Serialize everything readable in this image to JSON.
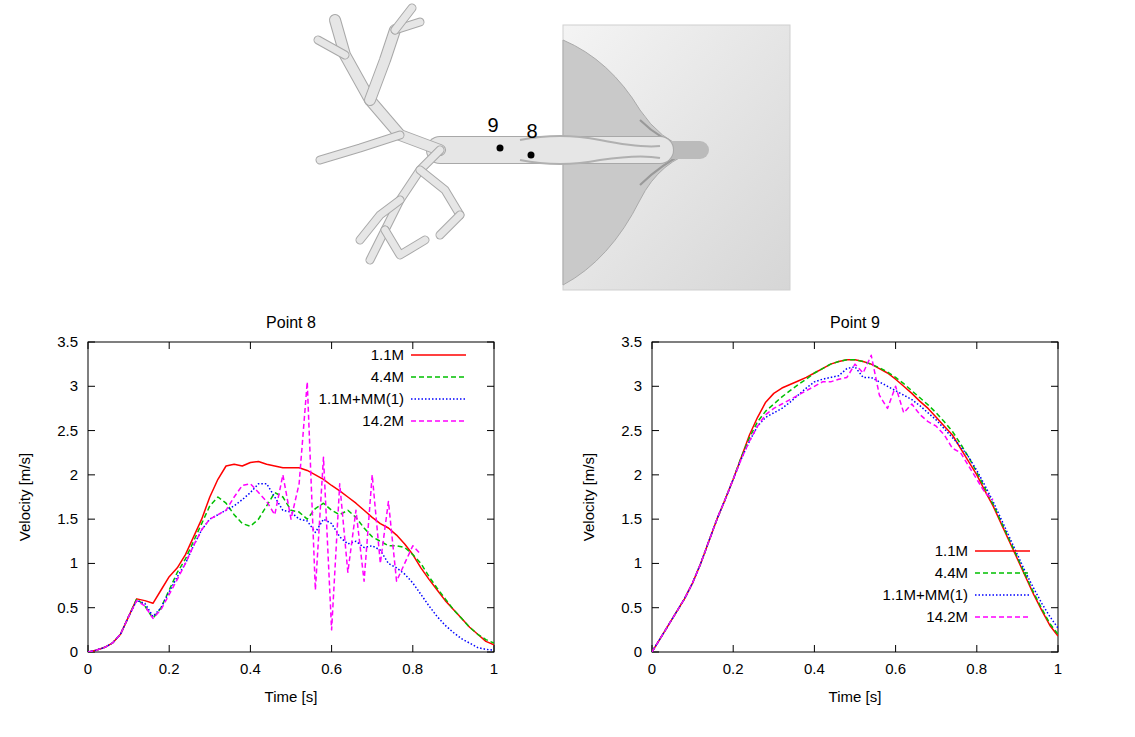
{
  "illustration": {
    "point_labels": [
      "9",
      "8"
    ]
  },
  "chart_data": [
    {
      "type": "line",
      "title": "Point 8",
      "x_label": "Time [s]",
      "y_label": "Velocity [m/s]",
      "x": [
        0,
        0.02,
        0.04,
        0.06,
        0.08,
        0.1,
        0.12,
        0.14,
        0.16,
        0.18,
        0.2,
        0.22,
        0.24,
        0.26,
        0.28,
        0.3,
        0.32,
        0.34,
        0.36,
        0.38,
        0.4,
        0.42,
        0.44,
        0.46,
        0.48,
        0.5,
        0.52,
        0.54,
        0.56,
        0.58,
        0.6,
        0.62,
        0.64,
        0.66,
        0.68,
        0.7,
        0.72,
        0.74,
        0.76,
        0.78,
        0.8,
        0.82,
        0.84,
        0.86,
        0.88,
        0.9,
        0.92,
        0.94,
        0.96,
        0.98,
        1
      ],
      "xlim": [
        0,
        1
      ],
      "xticks": [
        0,
        0.2,
        0.4,
        0.6,
        0.8,
        1
      ],
      "ylim": [
        0,
        3.5
      ],
      "yticks": [
        0,
        0.5,
        1,
        1.5,
        2,
        2.5,
        3,
        3.5
      ],
      "grid": false,
      "legend": "top right",
      "series": [
        {
          "name": "1.1M",
          "color": "#ff0000",
          "line_style": "solid",
          "values": [
            0,
            0.02,
            0.05,
            0.1,
            0.2,
            0.4,
            0.6,
            0.58,
            0.55,
            0.7,
            0.85,
            0.95,
            1.1,
            1.3,
            1.5,
            1.75,
            1.95,
            2.1,
            2.12,
            2.1,
            2.14,
            2.15,
            2.12,
            2.1,
            2.08,
            2.08,
            2.08,
            2.05,
            2.0,
            1.95,
            1.88,
            1.82,
            1.75,
            1.68,
            1.6,
            1.52,
            1.45,
            1.4,
            1.32,
            1.22,
            1.1,
            0.95,
            0.82,
            0.7,
            0.58,
            0.48,
            0.38,
            0.28,
            0.2,
            0.12,
            0.08
          ]
        },
        {
          "name": "4.4M",
          "color": "#00c000",
          "line_style": "dashed",
          "values": [
            0,
            0.02,
            0.05,
            0.1,
            0.2,
            0.4,
            0.6,
            0.52,
            0.38,
            0.5,
            0.7,
            0.9,
            1.05,
            1.25,
            1.45,
            1.65,
            1.75,
            1.68,
            1.55,
            1.45,
            1.42,
            1.5,
            1.65,
            1.8,
            1.75,
            1.6,
            1.58,
            1.5,
            1.62,
            1.68,
            1.6,
            1.55,
            1.6,
            1.52,
            1.4,
            1.3,
            1.25,
            1.2,
            1.2,
            1.18,
            1.1,
            1.0,
            0.85,
            0.72,
            0.6,
            0.48,
            0.38,
            0.28,
            0.2,
            0.14,
            0.1
          ]
        },
        {
          "name": "1.1M+MM(1)",
          "color": "#0000ff",
          "line_style": "dotted",
          "values": [
            0,
            0.02,
            0.05,
            0.1,
            0.2,
            0.4,
            0.58,
            0.55,
            0.4,
            0.5,
            0.68,
            0.85,
            1.0,
            1.2,
            1.38,
            1.5,
            1.55,
            1.6,
            1.65,
            1.72,
            1.8,
            1.9,
            1.9,
            1.75,
            1.6,
            1.58,
            1.5,
            1.48,
            1.35,
            1.5,
            1.45,
            1.3,
            1.22,
            1.25,
            1.18,
            1.2,
            1.15,
            1.0,
            0.95,
            0.88,
            0.78,
            0.65,
            0.52,
            0.4,
            0.3,
            0.22,
            0.15,
            0.1,
            0.05,
            0.03,
            0.02
          ]
        },
        {
          "name": "14.2M",
          "color": "#ff00ff",
          "line_style": "dashed",
          "values": [
            0,
            0.02,
            0.05,
            0.1,
            0.2,
            0.4,
            0.58,
            0.52,
            0.38,
            0.48,
            0.65,
            0.82,
            1.0,
            1.2,
            1.38,
            1.5,
            1.55,
            1.6,
            1.75,
            1.88,
            1.9,
            1.8,
            1.7,
            1.55,
            2.0,
            1.5,
            1.9,
            3.05,
            0.7,
            2.2,
            0.25,
            1.9,
            0.9,
            1.6,
            0.8,
            2.0,
            1.0,
            1.7,
            0.8,
            1.0,
            1.2,
            1.1,
            null,
            null,
            null,
            null,
            null,
            null,
            null,
            null,
            null
          ]
        }
      ]
    },
    {
      "type": "line",
      "title": "Point 9",
      "x_label": "Time [s]",
      "y_label": "Velocity [m/s]",
      "x": [
        0,
        0.02,
        0.04,
        0.06,
        0.08,
        0.1,
        0.12,
        0.14,
        0.16,
        0.18,
        0.2,
        0.22,
        0.24,
        0.26,
        0.28,
        0.3,
        0.32,
        0.34,
        0.36,
        0.38,
        0.4,
        0.42,
        0.44,
        0.46,
        0.48,
        0.5,
        0.52,
        0.54,
        0.56,
        0.58,
        0.6,
        0.62,
        0.64,
        0.66,
        0.68,
        0.7,
        0.72,
        0.74,
        0.76,
        0.78,
        0.8,
        0.82,
        0.84,
        0.86,
        0.88,
        0.9,
        0.92,
        0.94,
        0.96,
        0.98,
        1
      ],
      "xlim": [
        0,
        1
      ],
      "xticks": [
        0,
        0.2,
        0.4,
        0.6,
        0.8,
        1
      ],
      "ylim": [
        0,
        3.5
      ],
      "yticks": [
        0,
        0.5,
        1,
        1.5,
        2,
        2.5,
        3,
        3.5
      ],
      "grid": false,
      "legend": "bottom right",
      "series": [
        {
          "name": "1.1M",
          "color": "#ff0000",
          "line_style": "solid",
          "values": [
            0,
            0.15,
            0.3,
            0.45,
            0.6,
            0.78,
            1.0,
            1.25,
            1.5,
            1.72,
            1.95,
            2.2,
            2.45,
            2.65,
            2.82,
            2.92,
            2.98,
            3.02,
            3.06,
            3.1,
            3.15,
            3.2,
            3.25,
            3.28,
            3.3,
            3.3,
            3.28,
            3.25,
            3.2,
            3.15,
            3.08,
            3.0,
            2.92,
            2.83,
            2.75,
            2.65,
            2.55,
            2.45,
            2.3,
            2.15,
            2.0,
            1.82,
            1.65,
            1.45,
            1.25,
            1.05,
            0.85,
            0.65,
            0.47,
            0.3,
            0.18
          ]
        },
        {
          "name": "4.4M",
          "color": "#00c000",
          "line_style": "dashed",
          "values": [
            0,
            0.15,
            0.3,
            0.45,
            0.6,
            0.78,
            1.0,
            1.25,
            1.5,
            1.72,
            1.95,
            2.2,
            2.42,
            2.6,
            2.72,
            2.8,
            2.88,
            2.95,
            3.02,
            3.08,
            3.15,
            3.2,
            3.25,
            3.28,
            3.3,
            3.3,
            3.28,
            3.25,
            3.21,
            3.16,
            3.1,
            3.03,
            2.95,
            2.87,
            2.79,
            2.7,
            2.6,
            2.49,
            2.35,
            2.2,
            2.03,
            1.85,
            1.67,
            1.47,
            1.27,
            1.07,
            0.87,
            0.67,
            0.49,
            0.32,
            0.2
          ]
        },
        {
          "name": "1.1M+MM(1)",
          "color": "#0000ff",
          "line_style": "dotted",
          "values": [
            0,
            0.15,
            0.3,
            0.45,
            0.6,
            0.78,
            1.0,
            1.25,
            1.5,
            1.72,
            1.95,
            2.18,
            2.38,
            2.55,
            2.65,
            2.7,
            2.75,
            2.82,
            2.9,
            2.98,
            3.05,
            3.08,
            3.1,
            3.12,
            3.2,
            3.22,
            3.1,
            3.1,
            3.05,
            3.0,
            2.95,
            2.9,
            2.85,
            2.78,
            2.7,
            2.62,
            2.52,
            2.42,
            2.32,
            2.2,
            2.05,
            1.88,
            1.7,
            1.5,
            1.3,
            1.1,
            0.9,
            0.72,
            0.55,
            0.4,
            0.27
          ]
        },
        {
          "name": "14.2M",
          "color": "#ff00ff",
          "line_style": "dashed",
          "values": [
            0,
            0.15,
            0.3,
            0.45,
            0.6,
            0.78,
            1.0,
            1.25,
            1.5,
            1.72,
            1.95,
            2.18,
            2.38,
            2.55,
            2.68,
            2.75,
            2.8,
            2.85,
            2.9,
            2.95,
            3.0,
            3.05,
            3.05,
            3.08,
            3.1,
            3.25,
            3.15,
            3.35,
            2.9,
            2.75,
            3.0,
            2.7,
            2.8,
            2.68,
            2.6,
            2.55,
            2.45,
            2.3,
            2.25,
            2.1,
            1.95,
            1.8,
            1.72,
            null,
            null,
            null,
            null,
            null,
            null,
            null,
            null
          ]
        }
      ]
    }
  ]
}
